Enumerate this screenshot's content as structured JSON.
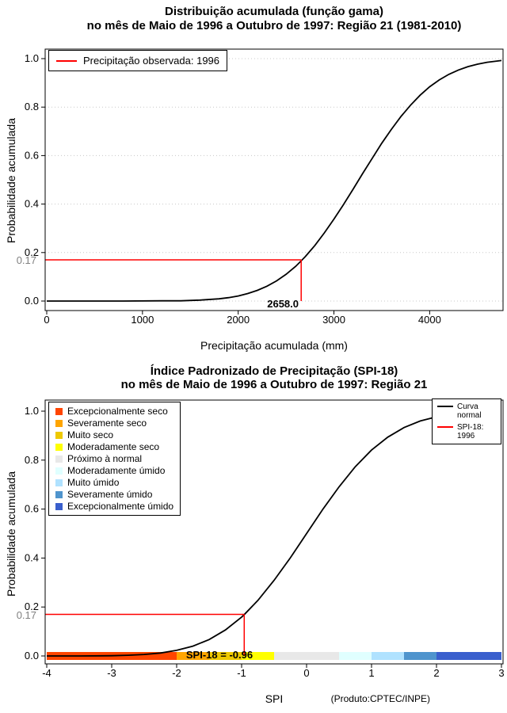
{
  "chart_data": [
    {
      "type": "line",
      "title_line1": "Distribuição acumulada (função gama)",
      "title_line2": "no mês de Maio de 1996 a Outubro de 1997: Região 21 (1981-2010)",
      "xlabel": "Precipitação acumulada (mm)",
      "ylabel": "Probabilidade acumulada",
      "xlim": [
        0,
        4750
      ],
      "ylim": [
        0,
        1
      ],
      "x_ticks": [
        0,
        1000,
        2000,
        3000,
        4000
      ],
      "x_tick_labels": [
        "0",
        "1000",
        "2000",
        "3000",
        "4000"
      ],
      "y_ticks": [
        0.0,
        0.2,
        0.4,
        0.6,
        0.8,
        1.0
      ],
      "y_tick_labels": [
        "0.0",
        "0.2",
        "0.4",
        "0.6",
        "0.8",
        "1.0"
      ],
      "grid": "horizontal-dotted",
      "series": [
        {
          "name": "gamma-cdf",
          "color": "#000000",
          "x": [
            0,
            400,
            800,
            1200,
            1400,
            1600,
            1800,
            1900,
            2000,
            2100,
            2200,
            2300,
            2400,
            2500,
            2600,
            2658,
            2700,
            2800,
            2900,
            3000,
            3100,
            3200,
            3300,
            3400,
            3500,
            3600,
            3700,
            3800,
            3900,
            4000,
            4100,
            4200,
            4300,
            4400,
            4500,
            4600,
            4700,
            4750
          ],
          "y": [
            0,
            0,
            0,
            0.001,
            0.001,
            0.004,
            0.009,
            0.014,
            0.021,
            0.031,
            0.044,
            0.061,
            0.083,
            0.11,
            0.143,
            0.166,
            0.183,
            0.229,
            0.281,
            0.338,
            0.398,
            0.461,
            0.526,
            0.589,
            0.651,
            0.708,
            0.761,
            0.808,
            0.849,
            0.884,
            0.912,
            0.935,
            0.953,
            0.967,
            0.977,
            0.985,
            0.99,
            0.992
          ]
        }
      ],
      "annotation": {
        "x": 2658.0,
        "y": 0.17,
        "color": "#FF0000",
        "x_label": "2658.0",
        "y_label": "0.17",
        "legend": "Precipitação observada: 1996"
      }
    },
    {
      "type": "line",
      "title_line1": "Índice Padronizado de Precipitação (SPI-18)",
      "title_line2": "no mês de Maio de 1996 a Outubro de 1997: Região 21",
      "xlabel": "SPI",
      "ylabel": "Probabilidade acumulada",
      "footnote": "(Produto:CPTEC/INPE)",
      "xlim": [
        -4,
        3
      ],
      "ylim": [
        0,
        1
      ],
      "x_ticks": [
        -4,
        -3,
        -2,
        -1,
        0,
        1,
        2,
        3
      ],
      "x_tick_labels": [
        "-4",
        "-3",
        "-2",
        "-1",
        "0",
        "1",
        "2",
        "3"
      ],
      "y_ticks": [
        0.0,
        0.2,
        0.4,
        0.6,
        0.8,
        1.0
      ],
      "y_tick_labels": [
        "0.0",
        "0.2",
        "0.4",
        "0.6",
        "0.8",
        "1.0"
      ],
      "grid": "none",
      "series": [
        {
          "name": "normal-cdf",
          "color": "#000000",
          "x": [
            -4,
            -3.5,
            -3,
            -2.75,
            -2.5,
            -2.25,
            -2,
            -1.75,
            -1.5,
            -1.25,
            -1,
            -0.96,
            -0.75,
            -0.5,
            -0.25,
            0,
            0.25,
            0.5,
            0.75,
            1,
            1.25,
            1.5,
            1.75,
            2,
            2.25,
            2.5,
            2.75,
            3
          ],
          "y": [
            0.0,
            0.0,
            0.001,
            0.003,
            0.006,
            0.012,
            0.023,
            0.04,
            0.067,
            0.106,
            0.159,
            0.169,
            0.227,
            0.309,
            0.401,
            0.5,
            0.599,
            0.691,
            0.773,
            0.841,
            0.894,
            0.933,
            0.96,
            0.977,
            0.988,
            0.994,
            0.997,
            0.999
          ]
        }
      ],
      "annotation": {
        "x": -0.96,
        "y": 0.17,
        "color": "#FF0000",
        "x_label": "SPI-18 = -0.96",
        "y_label": "0.17"
      },
      "legend": [
        {
          "label": "Curva normal",
          "color": "#000000"
        },
        {
          "label": "SPI-18: 1996",
          "color": "#FF0000"
        }
      ],
      "category_bar": [
        {
          "label": "Excepcionalmente seco",
          "from": -4,
          "to": -2,
          "color": "#FF4500"
        },
        {
          "label": "Severamente seco",
          "from": -2,
          "to": -1.5,
          "color": "#FFA500"
        },
        {
          "label": "Muito seco",
          "from": -1.5,
          "to": -1,
          "color": "#EEC900"
        },
        {
          "label": "Moderadamente seco",
          "from": -1,
          "to": -0.5,
          "color": "#FFFF00"
        },
        {
          "label": "Próximo à normal",
          "from": -0.5,
          "to": 0.5,
          "color": "#E8E8E8"
        },
        {
          "label": "Moderadamente úmido",
          "from": 0.5,
          "to": 1,
          "color": "#E0FFFF"
        },
        {
          "label": "Muito úmido",
          "from": 1,
          "to": 1.5,
          "color": "#B0E2FF"
        },
        {
          "label": "Severamente úmido",
          "from": 1.5,
          "to": 2,
          "color": "#4F94CD"
        },
        {
          "label": "Excepcionalmente úmido",
          "from": 2,
          "to": 3,
          "color": "#3A5FCD"
        }
      ]
    }
  ]
}
